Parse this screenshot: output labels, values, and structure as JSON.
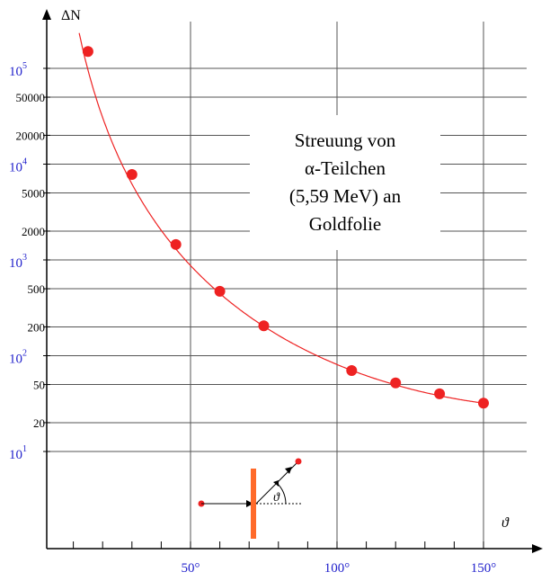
{
  "chart_data": {
    "type": "scatter",
    "title": "Streuung von α-Teilchen (5,59 MeV) an Goldfolie",
    "title_lines": [
      "Streuung von",
      "α-Teilchen",
      "(5,59 MeV) an",
      "Goldfolie"
    ],
    "xlabel": "ϑ",
    "ylabel": "ΔN",
    "x_scale": "linear",
    "y_scale": "log",
    "xlim": [
      0,
      155
    ],
    "ylim": [
      1.4,
      200000
    ],
    "grid": true,
    "x_ticks_labeled": [
      {
        "value": 50,
        "label": "50°"
      },
      {
        "value": 100,
        "label": "100°"
      },
      {
        "value": 150,
        "label": "150°"
      }
    ],
    "y_ticks_black": [
      {
        "value": 50000,
        "label": "50000"
      },
      {
        "value": 20000,
        "label": "20000"
      },
      {
        "value": 5000,
        "label": "5000"
      },
      {
        "value": 2000,
        "label": "2000"
      },
      {
        "value": 500,
        "label": "500"
      },
      {
        "value": 200,
        "label": "200"
      },
      {
        "value": 50,
        "label": "50"
      },
      {
        "value": 20,
        "label": "20"
      }
    ],
    "y_ticks_blue": [
      {
        "value": 100000,
        "base": "10",
        "exp": "5"
      },
      {
        "value": 10000,
        "base": "10",
        "exp": "4"
      },
      {
        "value": 1000,
        "base": "10",
        "exp": "3"
      },
      {
        "value": 100,
        "base": "10",
        "exp": "2"
      },
      {
        "value": 10,
        "base": "10",
        "exp": "1"
      }
    ],
    "series": [
      {
        "color": "#ee2222",
        "points": [
          {
            "x": 15,
            "y": 150000
          },
          {
            "x": 30,
            "y": 7800
          },
          {
            "x": 45,
            "y": 1450
          },
          {
            "x": 60,
            "y": 470
          },
          {
            "x": 75,
            "y": 205
          },
          {
            "x": 105,
            "y": 70
          },
          {
            "x": 120,
            "y": 52
          },
          {
            "x": 135,
            "y": 40
          },
          {
            "x": 150,
            "y": 32
          }
        ]
      }
    ],
    "inset_diagram": {
      "angle_label": "ϑ",
      "foil_color": "#ff6a2a",
      "particle_color": "#ee2222"
    }
  }
}
